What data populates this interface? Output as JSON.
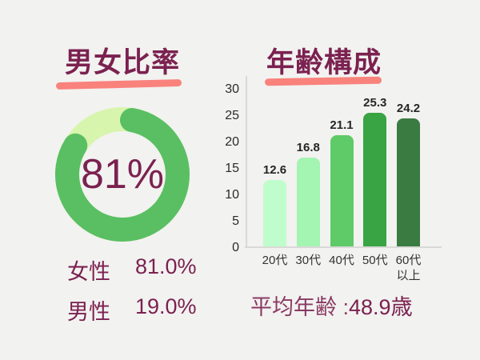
{
  "colors": {
    "background": "#f2f2f0",
    "plum": "#7b2150",
    "plum_light": "#8a3a63",
    "underline_pink": "#f9827c",
    "donut_green": "#5abf62",
    "donut_light_green": "#d7f5ad",
    "axis_gray": "#d9d9d7",
    "data_label_dark": "#262626",
    "bar_colors": [
      "#c0fdcd",
      "#a4f4b2",
      "#5fca68",
      "#38a443",
      "#3a7b42"
    ]
  },
  "gender": {
    "title": "男女比率",
    "center_label": "81%",
    "legend": [
      {
        "label": "女性",
        "value": "81.0%"
      },
      {
        "label": "男性",
        "value": "19.0%"
      }
    ]
  },
  "age": {
    "title": "年齢構成",
    "average_label": "平均年齢 :",
    "average_value": "48.9歳"
  },
  "chart_data": [
    {
      "type": "pie",
      "donut": true,
      "title": "男女比率",
      "labels": [
        "女性",
        "男性"
      ],
      "values": [
        81.0,
        19.0
      ],
      "center_text": "81%",
      "slice_colors": [
        "#5abf62",
        "#d7f5ad"
      ]
    },
    {
      "type": "bar",
      "title": "年齢構成",
      "categories": [
        "20代",
        "30代",
        "40代",
        "50代",
        "60代\n以上"
      ],
      "values": [
        12.6,
        16.8,
        21.1,
        25.3,
        24.2
      ],
      "data_labels": [
        "12.6",
        "16.8",
        "21.1",
        "25.3",
        "24.2"
      ],
      "xlabel": "",
      "ylabel": "",
      "ylim": [
        0,
        30
      ],
      "yticks": [
        0,
        5,
        10,
        15,
        20,
        25,
        30
      ],
      "grid": false,
      "legend": false,
      "annotation": "平均年齢 :48.9歳"
    }
  ]
}
